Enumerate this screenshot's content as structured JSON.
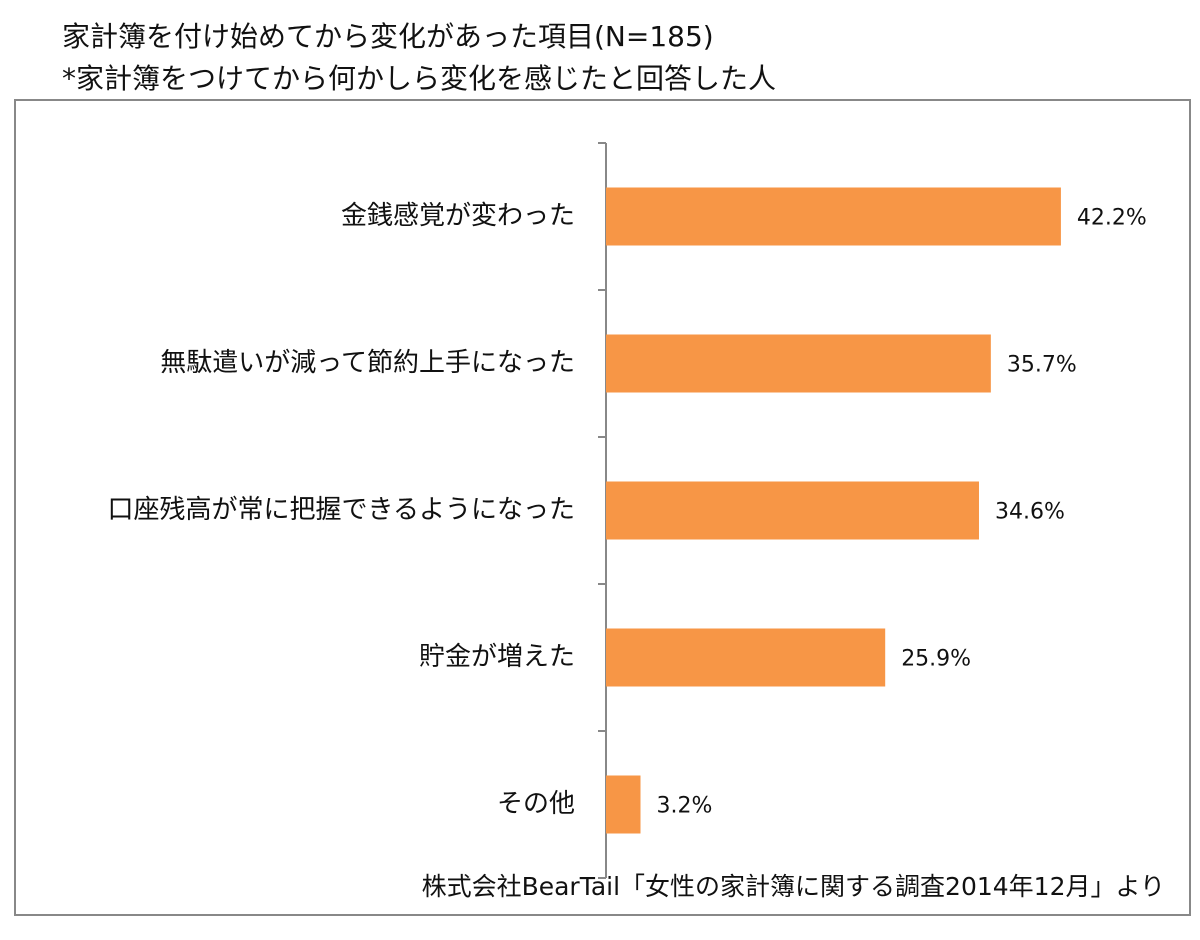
{
  "chart_data": {
    "type": "bar",
    "orientation": "horizontal",
    "title": "家計簿を付け始めてから変化があった項目(N=185)",
    "subtitle": "*家計簿をつけてから何かしら変化を感じたと回答した人",
    "source": "株式会社BearTail「女性の家計簿に関する調査2014年12月」より",
    "categories": [
      "金銭感覚が変わった",
      "無駄遣いが減って節約上手になった",
      "口座残高が常に把握できるようになった",
      "貯金が増えた",
      "その他"
    ],
    "values": [
      42.2,
      35.7,
      34.6,
      25.9,
      3.2
    ],
    "value_labels": [
      "42.2%",
      "35.7%",
      "34.6%",
      "25.9%",
      "3.2%"
    ],
    "color": "#f79646",
    "xlim": [
      0,
      50
    ]
  }
}
